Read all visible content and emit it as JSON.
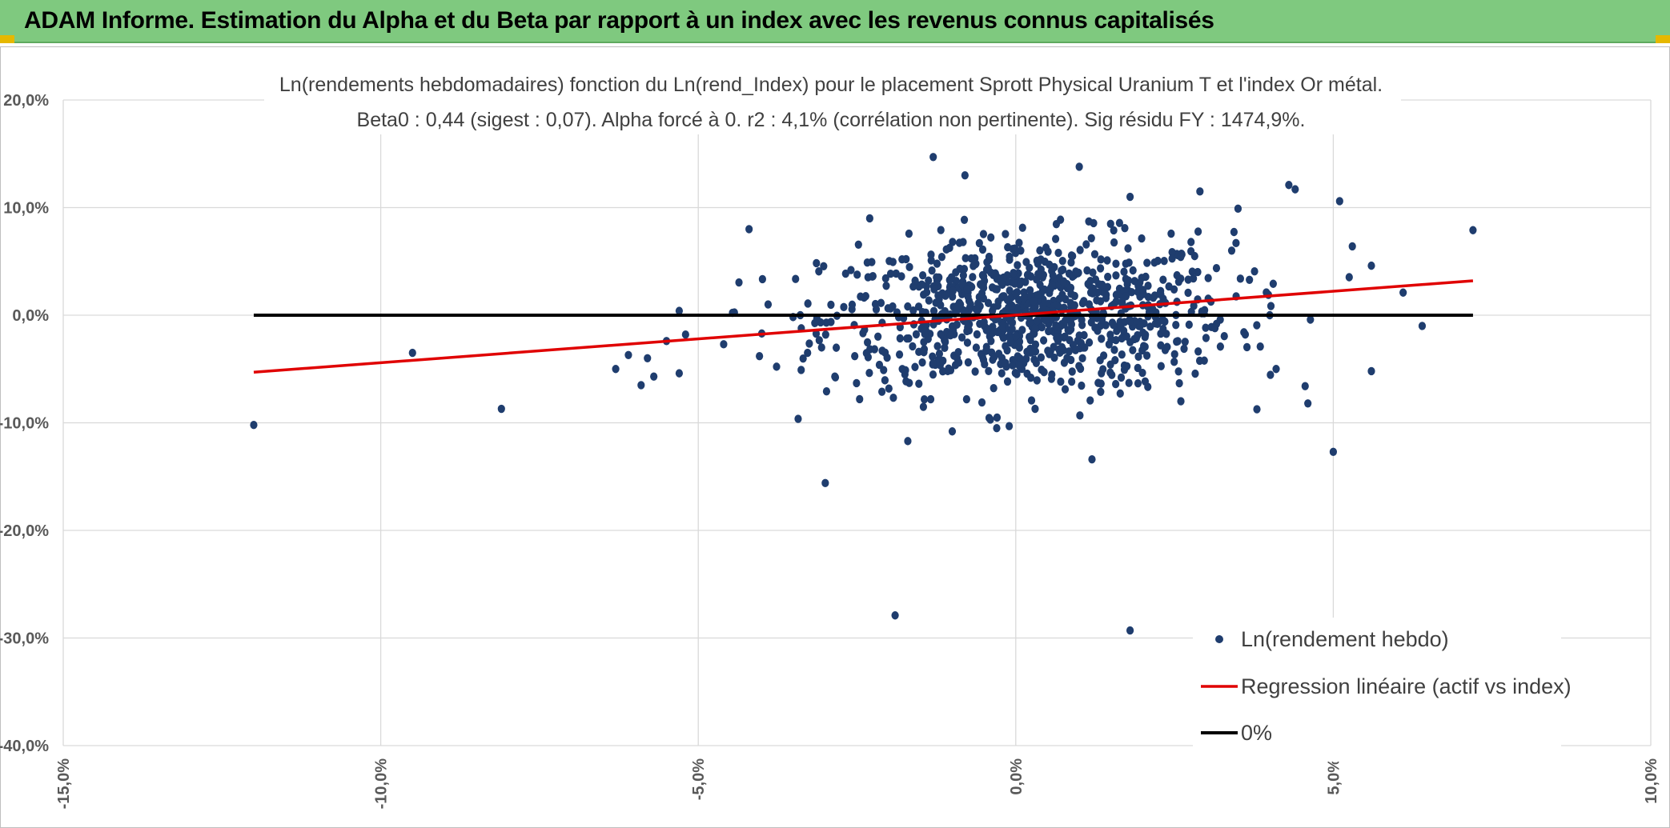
{
  "header": {
    "title": "ADAM Informe. Estimation du Alpha et du Beta par rapport à un index avec les revenus connus capitalisés"
  },
  "colors": {
    "header_bg": "#7fc97f",
    "points": "#1f3d6e",
    "regression": "#e00000",
    "zero_line": "#000000",
    "grid": "#d9d9d9"
  },
  "chart_data": {
    "type": "scatter",
    "title_lines": [
      "Ln(rendements hebdomadaires) fonction du Ln(rend_Index) pour le placement Sprott Physical Uranium T et l'index Or métal.",
      "Beta0 : 0,44 (sigest : 0,07). Alpha forcé à 0. r2 : 4,1% (corrélation non pertinente). Sig résidu FY : 1474,9%."
    ],
    "xlim": [
      -0.15,
      0.1
    ],
    "ylim": [
      -0.4,
      0.2
    ],
    "x_ticks": [
      -0.15,
      -0.1,
      -0.05,
      0.0,
      0.05,
      0.1
    ],
    "x_tick_labels": [
      "-15,0%",
      "-10,0%",
      "-5,0%",
      "0,0%",
      "5,0%",
      "10,0%"
    ],
    "y_ticks": [
      0.2,
      0.1,
      0.0,
      -0.1,
      -0.2,
      -0.3,
      -0.4
    ],
    "y_tick_labels": [
      "20,0%",
      "10,0%",
      "0,0%",
      "-10,0%",
      "-20,0%",
      "-30,0%",
      "-40,0%"
    ],
    "grid": true,
    "legend_position": "bottom-right",
    "series": [
      {
        "name": "Ln(rendement hebdo)",
        "kind": "points",
        "outliers": [
          [
            -0.12,
            -0.102
          ],
          [
            -0.095,
            -0.035
          ],
          [
            -0.081,
            -0.087
          ],
          [
            -0.063,
            -0.05
          ],
          [
            -0.061,
            -0.037
          ],
          [
            -0.059,
            -0.065
          ],
          [
            -0.058,
            -0.04
          ],
          [
            -0.057,
            -0.057
          ],
          [
            -0.055,
            -0.024
          ],
          [
            -0.053,
            -0.054
          ],
          [
            -0.053,
            0.004
          ],
          [
            -0.052,
            -0.018
          ],
          [
            -0.046,
            -0.027
          ],
          [
            -0.042,
            0.08
          ],
          [
            -0.04,
            -0.017
          ],
          [
            -0.039,
            0.01
          ],
          [
            -0.03,
            -0.156
          ],
          [
            -0.019,
            -0.279
          ],
          [
            -0.013,
            0.147
          ],
          [
            -0.01,
            -0.108
          ],
          [
            -0.008,
            0.13
          ],
          [
            -0.003,
            -0.105
          ],
          [
            -0.004,
            -0.097
          ],
          [
            0.01,
            0.138
          ],
          [
            0.012,
            -0.134
          ],
          [
            0.018,
            -0.293
          ],
          [
            0.018,
            0.11
          ],
          [
            0.029,
            0.115
          ],
          [
            0.035,
            0.099
          ],
          [
            0.04,
            0.0
          ],
          [
            0.041,
            -0.05
          ],
          [
            0.043,
            0.121
          ],
          [
            0.044,
            0.117
          ],
          [
            0.046,
            -0.082
          ],
          [
            0.05,
            -0.127
          ],
          [
            0.051,
            0.106
          ],
          [
            0.053,
            0.064
          ],
          [
            0.056,
            0.046
          ],
          [
            0.056,
            -0.052
          ],
          [
            0.061,
            0.021
          ],
          [
            0.064,
            -0.01
          ],
          [
            0.072,
            0.079
          ],
          [
            -0.023,
            0.09
          ],
          [
            0.026,
            -0.08
          ],
          [
            0.034,
            0.06
          ],
          [
            -0.017,
            -0.117
          ]
        ],
        "cluster": {
          "count": 930,
          "x_center": 0.002,
          "y_center": 0.0,
          "x_sd": 0.016,
          "y_sd": 0.036,
          "slope": 0.44
        }
      },
      {
        "name": "Regression linéaire (actif vs index)",
        "kind": "line",
        "x": [
          -0.12,
          0.072
        ],
        "y": [
          -0.053,
          0.032
        ]
      },
      {
        "name": "0%",
        "kind": "line",
        "x": [
          -0.12,
          0.072
        ],
        "y": [
          0.0,
          0.0
        ]
      }
    ]
  }
}
